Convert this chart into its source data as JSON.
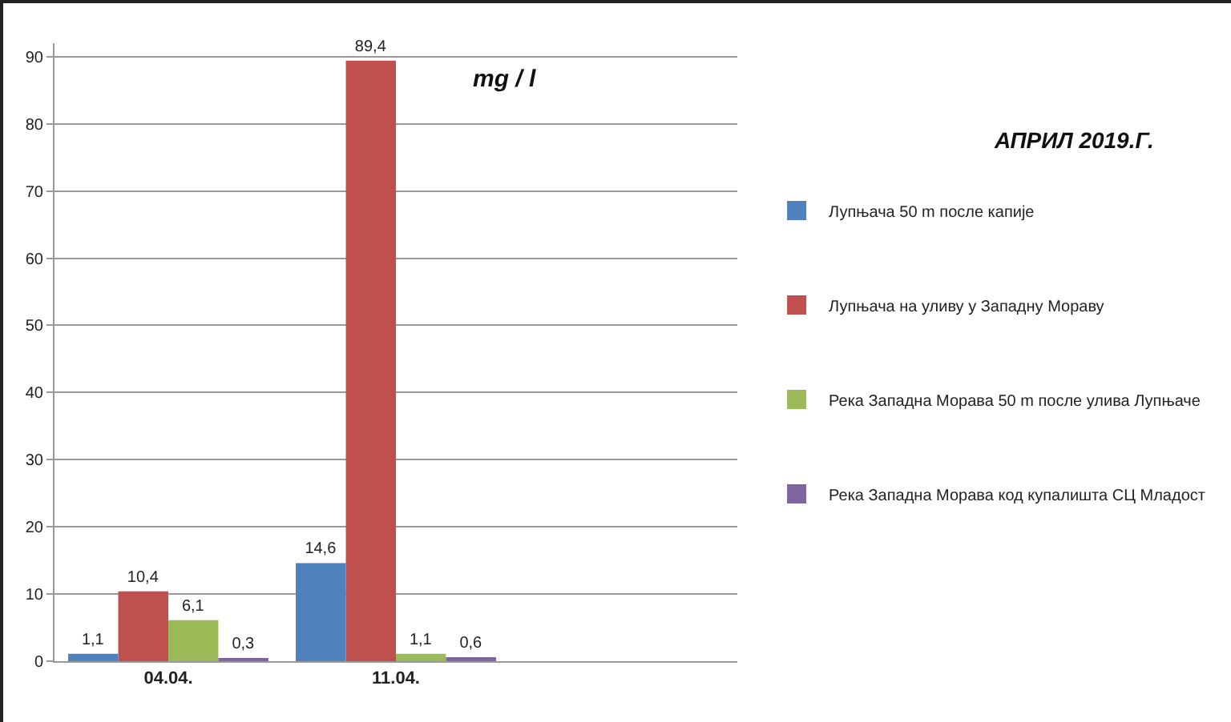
{
  "chart_data": {
    "type": "bar",
    "title": "АПРИЛ 2019.Г.",
    "ylabel": "mg / l",
    "categories": [
      "04.04.",
      "11.04.",
      null
    ],
    "series": [
      {
        "name": "Лупњача 50 m после капије",
        "color": "#4f81bd",
        "values": [
          1.1,
          14.6,
          null
        ],
        "value_labels": [
          "1,1",
          "14,6",
          null
        ]
      },
      {
        "name": "Лупњача на уливу у Западну Мораву",
        "color": "#c0504d",
        "values": [
          10.4,
          89.4,
          null
        ],
        "value_labels": [
          "10,4",
          "89,4",
          null
        ]
      },
      {
        "name": "Река Западна Морава 50 m после улива Лупњаче",
        "color": "#9bbb59",
        "values": [
          6.1,
          1.1,
          null
        ],
        "value_labels": [
          "6,1",
          "1,1",
          null
        ]
      },
      {
        "name": "Река Западна Морава код купалишта СЦ Младост",
        "color": "#8064a2",
        "values": [
          0.3,
          0.6,
          null
        ],
        "value_labels": [
          "0,3",
          "0,6",
          null
        ]
      }
    ],
    "ylim": [
      0,
      92
    ],
    "yticks": [
      0,
      10,
      20,
      30,
      40,
      50,
      60,
      70,
      80,
      90
    ],
    "grid": "y",
    "legend": "right"
  }
}
